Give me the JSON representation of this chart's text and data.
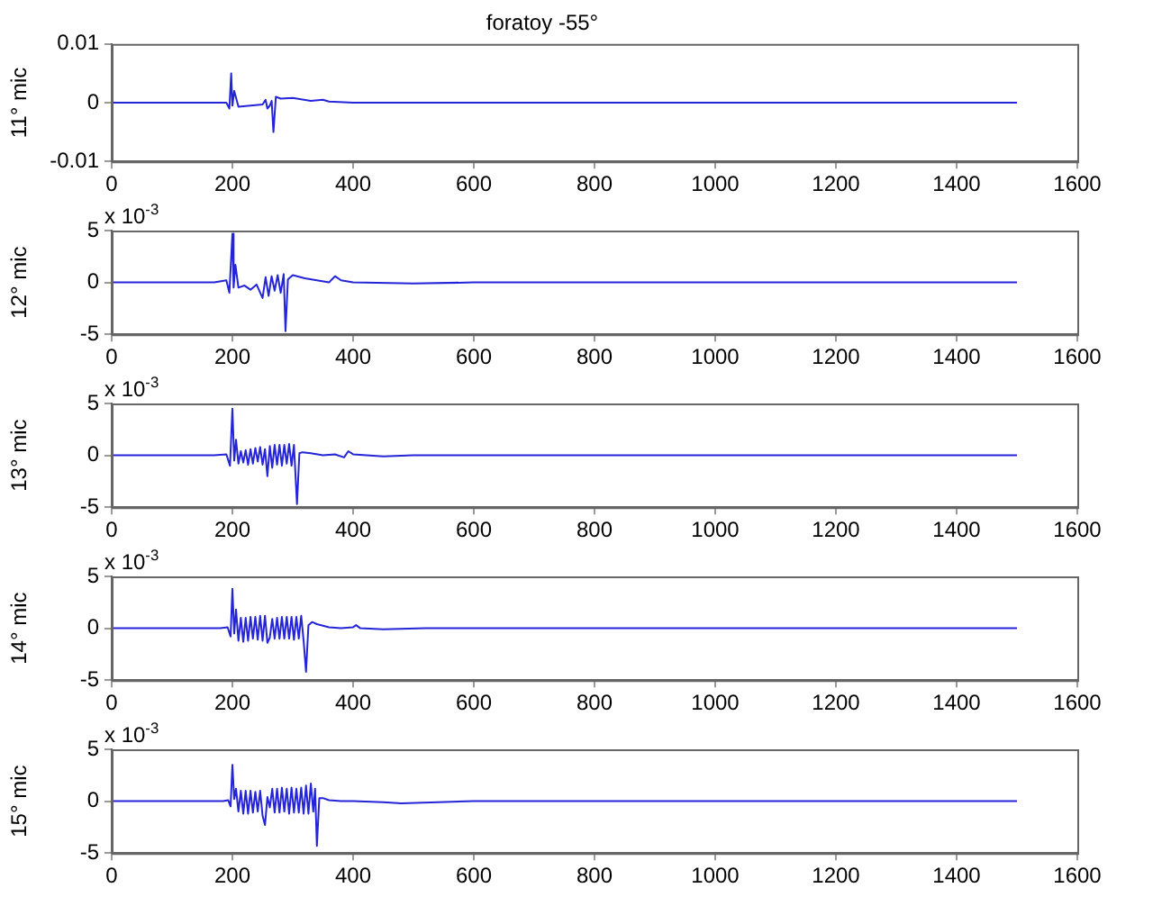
{
  "chart_data": [
    {
      "type": "line",
      "title": "foratoy -55°",
      "ylabel": "11° mic",
      "xlim": [
        0,
        1600
      ],
      "xticks": [
        0,
        200,
        400,
        600,
        800,
        1000,
        1200,
        1400,
        1600
      ],
      "ylim": [
        -0.01,
        0.01
      ],
      "yticks": [
        -0.01,
        0,
        0.01
      ],
      "grid": false,
      "legend": false,
      "marker": "none",
      "series": [
        {
          "color": "#2424d8",
          "x": [
            0,
            190,
            195,
            198,
            200,
            203,
            210,
            250,
            255,
            258,
            262,
            265,
            268,
            272,
            280,
            300,
            330,
            350,
            360,
            400,
            800,
            1500
          ],
          "values": [
            0,
            0,
            -0.001,
            0.005,
            -0.0005,
            0.002,
            -0.0007,
            -0.0003,
            0.0005,
            -0.001,
            -0.0005,
            0.0003,
            -0.005,
            0.001,
            0.0007,
            0.0008,
            0.0003,
            0.0005,
            0.0002,
            0,
            0,
            0
          ]
        }
      ]
    },
    {
      "type": "line",
      "ylabel": "12° mic",
      "annotations": [
        "x 10$^{-3}$"
      ],
      "xlim": [
        0,
        1600
      ],
      "xticks": [
        0,
        200,
        400,
        600,
        800,
        1000,
        1200,
        1400,
        1600
      ],
      "ylim": [
        -5,
        5
      ],
      "yticks": [
        -5,
        0,
        5
      ],
      "grid": false,
      "legend": false,
      "marker": "none",
      "series": [
        {
          "color": "#2424d8",
          "x": [
            0,
            170,
            190,
            195,
            200,
            202,
            205,
            210,
            220,
            230,
            240,
            250,
            255,
            260,
            265,
            270,
            275,
            280,
            285,
            288,
            292,
            300,
            320,
            340,
            360,
            370,
            380,
            400,
            500,
            600,
            1500
          ],
          "values": [
            0,
            0,
            0.2,
            -1,
            4.7,
            -0.5,
            1.7,
            -0.5,
            -0.3,
            -0.7,
            -0.2,
            -1.5,
            0.5,
            -1.3,
            0.6,
            -0.8,
            0.7,
            -1,
            0.8,
            -4.7,
            0.3,
            0.7,
            0.4,
            0.2,
            0,
            0.6,
            0.2,
            0,
            -0.1,
            0,
            0
          ]
        }
      ]
    },
    {
      "type": "line",
      "ylabel": "13° mic",
      "annotations": [
        "x 10$^{-3}$"
      ],
      "xlim": [
        0,
        1600
      ],
      "xticks": [
        0,
        200,
        400,
        600,
        800,
        1000,
        1200,
        1400,
        1600
      ],
      "ylim": [
        -5,
        5
      ],
      "yticks": [
        -5,
        0,
        5
      ],
      "grid": false,
      "legend": false,
      "marker": "none",
      "series": [
        {
          "color": "#2424d8",
          "x": [
            0,
            170,
            190,
            196,
            200,
            203,
            206,
            210,
            214,
            218,
            222,
            226,
            230,
            234,
            238,
            242,
            246,
            250,
            254,
            258,
            262,
            266,
            270,
            274,
            278,
            282,
            286,
            290,
            294,
            298,
            302,
            307,
            311,
            316,
            330,
            350,
            370,
            385,
            392,
            400,
            450,
            500,
            1500
          ],
          "values": [
            0,
            0,
            0.1,
            -1,
            4.5,
            -0.5,
            1.5,
            -0.8,
            0.4,
            -0.7,
            0.5,
            -0.9,
            0.6,
            -0.8,
            0.7,
            -0.6,
            0.8,
            -0.9,
            0.6,
            -2,
            0.9,
            -1.2,
            1,
            -0.9,
            1,
            -1,
            1,
            -0.8,
            1.1,
            -1,
            1,
            -4.7,
            0.2,
            0.3,
            0.2,
            0,
            0.1,
            -0.2,
            0.4,
            0.1,
            -0.1,
            0,
            0
          ]
        }
      ]
    },
    {
      "type": "line",
      "ylabel": "14° mic",
      "annotations": [
        "x 10$^{-3}$"
      ],
      "xlim": [
        0,
        1600
      ],
      "xticks": [
        0,
        200,
        400,
        600,
        800,
        1000,
        1200,
        1400,
        1600
      ],
      "ylim": [
        -5,
        5
      ],
      "yticks": [
        -5,
        0,
        5
      ],
      "grid": false,
      "legend": false,
      "marker": "none",
      "series": [
        {
          "color": "#2424d8",
          "x": [
            0,
            180,
            192,
            197,
            200,
            203,
            206,
            210,
            214,
            218,
            222,
            226,
            230,
            234,
            238,
            242,
            246,
            250,
            254,
            258,
            262,
            266,
            270,
            274,
            278,
            282,
            286,
            290,
            294,
            298,
            302,
            306,
            310,
            314,
            318,
            322,
            326,
            332,
            340,
            360,
            380,
            400,
            405,
            412,
            450,
            520,
            600,
            1500
          ],
          "values": [
            0,
            0,
            0.1,
            -0.8,
            3.8,
            -0.5,
            1.8,
            -1.2,
            1,
            -1.3,
            1,
            -1.2,
            1.1,
            -1,
            1.1,
            -1.1,
            1.2,
            -1.2,
            1.2,
            -1.4,
            -0.9,
            0.9,
            -1,
            1,
            -1,
            1.1,
            -1,
            1.1,
            -1,
            1.1,
            -1.1,
            1.1,
            -1,
            1.2,
            -1.2,
            -4.2,
            0.3,
            0.6,
            0.4,
            0.1,
            0,
            0.1,
            0.3,
            0,
            -0.1,
            0,
            0,
            0
          ]
        }
      ]
    },
    {
      "type": "line",
      "ylabel": "15° mic",
      "annotations": [
        "x 10$^{-3}$"
      ],
      "xlim": [
        0,
        1600
      ],
      "xticks": [
        0,
        200,
        400,
        600,
        800,
        1000,
        1200,
        1400,
        1600
      ],
      "ylim": [
        -5,
        5
      ],
      "yticks": [
        -5,
        0,
        5
      ],
      "grid": false,
      "legend": false,
      "marker": "none",
      "series": [
        {
          "color": "#2424d8",
          "x": [
            0,
            185,
            193,
            197,
            200,
            203,
            206,
            210,
            214,
            218,
            222,
            226,
            230,
            234,
            238,
            242,
            246,
            250,
            254,
            258,
            262,
            266,
            270,
            274,
            278,
            282,
            286,
            290,
            294,
            298,
            302,
            306,
            310,
            314,
            318,
            322,
            326,
            330,
            334,
            337,
            340,
            344,
            350,
            360,
            380,
            400,
            450,
            480,
            600,
            1500
          ],
          "values": [
            0,
            0,
            0.1,
            -0.5,
            3.5,
            0.2,
            1.2,
            -1,
            1,
            -1.2,
            1,
            -1.2,
            1,
            -1.1,
            0.9,
            -1,
            1,
            -1.4,
            -2.3,
            0.4,
            -0.6,
            1.2,
            -1.1,
            1.2,
            -1.1,
            1.3,
            -1,
            1.2,
            -1.2,
            1.3,
            -1.1,
            1.2,
            -1.1,
            1.3,
            -1.2,
            1.5,
            -1.2,
            1.7,
            -1,
            1.2,
            -4.3,
            0.3,
            0.3,
            0.1,
            0,
            0,
            -0.1,
            -0.2,
            0,
            0
          ]
        }
      ]
    }
  ]
}
